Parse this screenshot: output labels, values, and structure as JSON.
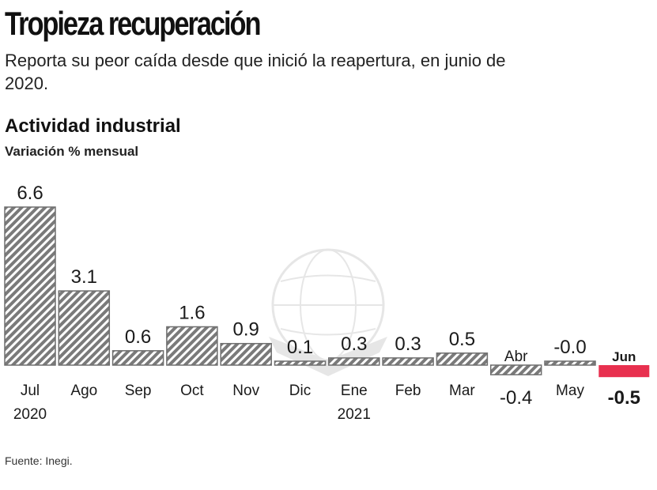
{
  "header": {
    "title": "Tropieza recuperación",
    "subtitle": "Reporta su peor caída desde que inició la reapertura, en junio de 2020."
  },
  "chart_section": {
    "title": "Actividad industrial",
    "unit": "Variación % mensual"
  },
  "footer": {
    "source": "Fuente: Inegi."
  },
  "colors": {
    "bar_stroke": "#6e6e6e",
    "bar_hatch": "#7a7a7a",
    "highlight": "#e8304f",
    "text": "#1a1a1a"
  },
  "chart_data": {
    "type": "bar",
    "title": "Actividad industrial",
    "ylabel": "Variación % mensual",
    "grid": false,
    "ylim": [
      -0.5,
      6.6
    ],
    "categories": [
      "Jul",
      "Ago",
      "Sep",
      "Oct",
      "Nov",
      "Dic",
      "Ene",
      "Feb",
      "Mar",
      "Abr",
      "May",
      "Jun"
    ],
    "year_labels": [
      "2020",
      "",
      "",
      "",
      "",
      "",
      "2021",
      "",
      "",
      "",
      "",
      ""
    ],
    "values": [
      6.6,
      3.1,
      0.6,
      1.6,
      0.9,
      0.1,
      0.3,
      0.3,
      0.5,
      -0.4,
      -0.0,
      -0.5
    ],
    "value_labels": [
      "6.6",
      "3.1",
      "0.6",
      "1.6",
      "0.9",
      "0.1",
      "0.3",
      "0.3",
      "0.5",
      "-0.4",
      "-0.0",
      "-0.5"
    ],
    "highlight": "Jun"
  }
}
